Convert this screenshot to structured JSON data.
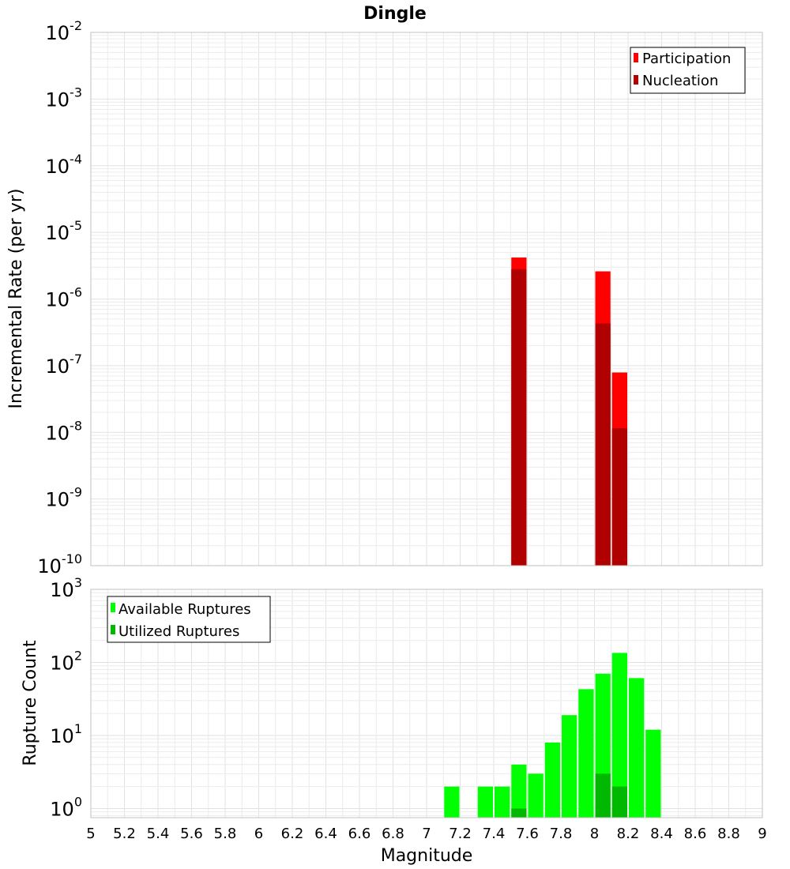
{
  "chart_data": [
    {
      "type": "bar",
      "title": "Dingle",
      "xlabel": "",
      "ylabel": "Incremental Rate (per yr)",
      "yscale": "log",
      "ylim_exponents": [
        -10,
        -2
      ],
      "y_ticks": [
        {
          "base": "10",
          "exp": "-10"
        },
        {
          "base": "10",
          "exp": "-9"
        },
        {
          "base": "10",
          "exp": "-8"
        },
        {
          "base": "10",
          "exp": "-7"
        },
        {
          "base": "10",
          "exp": "-6"
        },
        {
          "base": "10",
          "exp": "-5"
        },
        {
          "base": "10",
          "exp": "-4"
        },
        {
          "base": "10",
          "exp": "-3"
        },
        {
          "base": "10",
          "exp": "-2"
        }
      ],
      "xlim": [
        5,
        9
      ],
      "bin_width": 0.1,
      "legend_position": "top-right",
      "series": [
        {
          "name": "Participation",
          "color": "#ff0000",
          "x": [
            7.55,
            8.05,
            8.15
          ],
          "values": [
            4.2e-06,
            2.6e-06,
            7.9e-08
          ]
        },
        {
          "name": "Nucleation",
          "color": "#b00000",
          "x": [
            7.55,
            8.05,
            8.15
          ],
          "values": [
            2.8e-06,
            4.3e-07,
            1.15e-08
          ]
        }
      ]
    },
    {
      "type": "bar",
      "title": "",
      "xlabel": "Magnitude",
      "ylabel": "Rupture Count",
      "yscale": "log",
      "ylim": [
        0.75,
        1000
      ],
      "y_ticks": [
        {
          "base": "10",
          "exp": "0"
        },
        {
          "base": "10",
          "exp": "1"
        },
        {
          "base": "10",
          "exp": "2"
        },
        {
          "base": "10",
          "exp": "3"
        }
      ],
      "xlim": [
        5,
        9
      ],
      "x_tick_labels": [
        "5",
        "5.2",
        "5.4",
        "5.6",
        "5.8",
        "6",
        "6.2",
        "6.4",
        "6.6",
        "6.8",
        "7",
        "7.2",
        "7.4",
        "7.6",
        "7.8",
        "8",
        "8.2",
        "8.4",
        "8.6",
        "8.8",
        "9"
      ],
      "bin_width": 0.1,
      "legend_position": "top-left",
      "series": [
        {
          "name": "Available Ruptures",
          "color": "#00ff00",
          "x": [
            7.15,
            7.35,
            7.45,
            7.55,
            7.65,
            7.75,
            7.85,
            7.95,
            8.05,
            8.15,
            8.25,
            8.35
          ],
          "values": [
            2,
            2,
            2,
            4,
            3,
            8,
            19,
            43,
            70,
            135,
            61,
            12
          ]
        },
        {
          "name": "Utilized Ruptures",
          "color": "#00b800",
          "x": [
            7.55,
            8.05,
            8.15
          ],
          "values": [
            1,
            3,
            2
          ]
        }
      ]
    }
  ]
}
